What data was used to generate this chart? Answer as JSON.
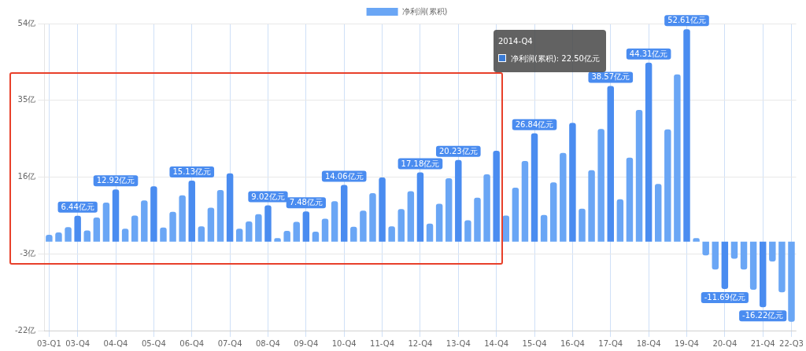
{
  "chart_data": {
    "type": "bar",
    "categories": [
      "03-Q1",
      null,
      null,
      "03-Q4",
      null,
      null,
      null,
      "04-Q4",
      null,
      null,
      null,
      "05-Q4",
      null,
      null,
      null,
      "06-Q4",
      null,
      null,
      null,
      "07-Q4",
      null,
      null,
      null,
      "08-Q4",
      null,
      null,
      null,
      "09-Q4",
      null,
      null,
      null,
      "10-Q4",
      null,
      null,
      null,
      "11-Q4",
      null,
      null,
      null,
      "12-Q4",
      null,
      null,
      null,
      "13-Q4",
      null,
      null,
      null,
      "14-Q4",
      null,
      null,
      null,
      "15-Q4",
      null,
      null,
      null,
      "16-Q4",
      null,
      null,
      null,
      "17-Q4",
      null,
      null,
      null,
      "18-Q4",
      null,
      null,
      null,
      "19-Q4",
      null,
      null,
      null,
      "20-Q4",
      null,
      null,
      null,
      "21-Q4",
      null,
      null,
      "22-Q3"
    ],
    "series": [
      {
        "name": "净利润(累积)",
        "color": "#6aa6f5",
        "values": [
          1.7,
          2.3,
          3.6,
          6.44,
          2.8,
          6.0,
          9.7,
          12.92,
          3.2,
          6.5,
          10.2,
          13.7,
          3.5,
          7.4,
          11.5,
          15.13,
          3.8,
          8.4,
          12.8,
          16.9,
          3.2,
          5.0,
          6.8,
          9.02,
          0.9,
          2.7,
          4.9,
          7.48,
          2.5,
          5.7,
          10.0,
          14.06,
          3.7,
          7.7,
          12.0,
          15.9,
          3.8,
          8.1,
          12.5,
          17.18,
          4.5,
          9.4,
          15.7,
          20.23,
          5.3,
          10.9,
          16.7,
          22.5,
          6.5,
          13.4,
          20.0,
          26.84,
          6.6,
          14.7,
          22.0,
          29.4,
          8.2,
          17.7,
          27.9,
          38.57,
          10.5,
          20.8,
          32.6,
          44.31,
          14.3,
          27.8,
          41.4,
          52.61,
          0.9,
          -3.4,
          -6.9,
          -11.69,
          -4.2,
          -6.9,
          -11.9,
          -16.22,
          -4.9,
          -12.5,
          -19.8
        ],
        "colors": [
          "#6aa6f5",
          "#6aa6f5",
          "#6aa6f5",
          "#4a8cf0",
          "#6aa6f5",
          "#6aa6f5",
          "#6aa6f5",
          "#4a8cf0",
          "#6aa6f5",
          "#6aa6f5",
          "#6aa6f5",
          "#4a8cf0",
          "#6aa6f5",
          "#6aa6f5",
          "#6aa6f5",
          "#4a8cf0",
          "#6aa6f5",
          "#6aa6f5",
          "#6aa6f5",
          "#4a8cf0",
          "#6aa6f5",
          "#6aa6f5",
          "#6aa6f5",
          "#4a8cf0",
          "#6aa6f5",
          "#6aa6f5",
          "#6aa6f5",
          "#4a8cf0",
          "#6aa6f5",
          "#6aa6f5",
          "#6aa6f5",
          "#4a8cf0",
          "#6aa6f5",
          "#6aa6f5",
          "#6aa6f5",
          "#4a8cf0",
          "#6aa6f5",
          "#6aa6f5",
          "#6aa6f5",
          "#4a8cf0",
          "#6aa6f5",
          "#6aa6f5",
          "#6aa6f5",
          "#4a8cf0",
          "#6aa6f5",
          "#6aa6f5",
          "#6aa6f5",
          "#4a8cf0",
          "#6aa6f5",
          "#6aa6f5",
          "#6aa6f5",
          "#4a8cf0",
          "#6aa6f5",
          "#6aa6f5",
          "#6aa6f5",
          "#4a8cf0",
          "#6aa6f5",
          "#6aa6f5",
          "#6aa6f5",
          "#4a8cf0",
          "#6aa6f5",
          "#6aa6f5",
          "#6aa6f5",
          "#4a8cf0",
          "#6aa6f5",
          "#6aa6f5",
          "#6aa6f5",
          "#4a8cf0",
          "#6aa6f5",
          "#6aa6f5",
          "#6aa6f5",
          "#4a8cf0",
          "#6aa6f5",
          "#6aa6f5",
          "#6aa6f5",
          "#4a8cf0",
          "#6aa6f5",
          "#6aa6f5",
          "#6aa6f5"
        ],
        "value_labels": [
          null,
          null,
          null,
          "6.44亿元",
          null,
          null,
          null,
          "12.92亿元",
          null,
          null,
          null,
          null,
          null,
          null,
          null,
          "15.13亿元",
          null,
          null,
          null,
          null,
          null,
          null,
          null,
          "9.02亿元",
          null,
          null,
          null,
          "7.48亿元",
          null,
          null,
          null,
          "14.06亿元",
          null,
          null,
          null,
          null,
          null,
          null,
          null,
          "17.18亿元",
          null,
          null,
          null,
          "20.23亿元",
          null,
          null,
          null,
          null,
          null,
          null,
          null,
          "26.84亿元",
          null,
          null,
          null,
          null,
          null,
          null,
          null,
          "38.57亿元",
          null,
          null,
          null,
          "44.31亿元",
          null,
          null,
          null,
          "52.61亿元",
          null,
          null,
          null,
          "-11.69亿元",
          null,
          null,
          null,
          "-16.22亿元",
          null,
          null,
          null
        ]
      }
    ],
    "ylim": [
      -22,
      54
    ],
    "yticks": [
      {
        "value": -22,
        "label": "-22亿"
      },
      {
        "value": -3,
        "label": "-3亿"
      },
      {
        "value": 16,
        "label": "16亿"
      },
      {
        "value": 35,
        "label": "35亿"
      },
      {
        "value": 54,
        "label": "54亿"
      }
    ],
    "grid": true,
    "legend": "top",
    "annotations": [
      "2014-Q4\n净利润(累积): 22.50亿元"
    ]
  }
}
